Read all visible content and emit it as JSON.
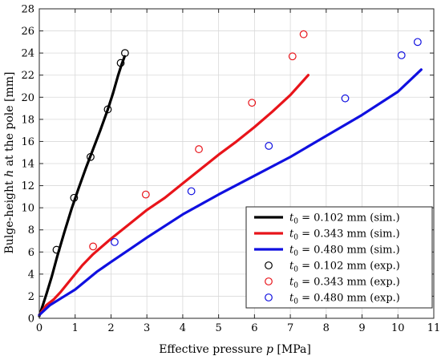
{
  "chart_data": {
    "type": "line",
    "xlabel": "Effective pressure p [MPa]",
    "ylabel": "Bulge-height h at the pole [mm]",
    "xlim": [
      0,
      11
    ],
    "ylim": [
      0,
      28
    ],
    "x_ticks": [
      0,
      1,
      2,
      3,
      4,
      5,
      6,
      7,
      8,
      9,
      10,
      11
    ],
    "y_ticks": [
      0,
      2,
      4,
      6,
      8,
      10,
      12,
      14,
      16,
      18,
      20,
      22,
      24,
      26,
      28
    ],
    "grid": true,
    "legend_position": "bottom-right",
    "series": [
      {
        "name": "t0 = 0.102 mm (sim.)",
        "kind": "line",
        "color": "#000000",
        "points": [
          [
            0,
            0.2
          ],
          [
            0.1,
            1.2
          ],
          [
            0.2,
            2.2
          ],
          [
            0.35,
            3.8
          ],
          [
            0.5,
            5.6
          ],
          [
            0.7,
            7.8
          ],
          [
            0.9,
            9.9
          ],
          [
            1.1,
            11.8
          ],
          [
            1.3,
            13.6
          ],
          [
            1.5,
            15.3
          ],
          [
            1.7,
            17.0
          ],
          [
            1.9,
            18.8
          ],
          [
            2.05,
            20.3
          ],
          [
            2.2,
            22.0
          ],
          [
            2.3,
            23.0
          ],
          [
            2.38,
            23.7
          ]
        ]
      },
      {
        "name": "t0 = 0.343 mm (sim.)",
        "kind": "line",
        "color": "#e8141a",
        "points": [
          [
            0,
            0.3
          ],
          [
            0.2,
            1.2
          ],
          [
            0.4,
            1.7
          ],
          [
            0.6,
            2.4
          ],
          [
            0.9,
            3.6
          ],
          [
            1.2,
            4.8
          ],
          [
            1.5,
            5.8
          ],
          [
            2.0,
            7.2
          ],
          [
            2.5,
            8.5
          ],
          [
            3.0,
            9.8
          ],
          [
            3.5,
            10.9
          ],
          [
            4.0,
            12.2
          ],
          [
            4.5,
            13.5
          ],
          [
            5.0,
            14.8
          ],
          [
            5.5,
            16.0
          ],
          [
            6.0,
            17.3
          ],
          [
            6.5,
            18.7
          ],
          [
            7.0,
            20.2
          ],
          [
            7.5,
            22.0
          ]
        ]
      },
      {
        "name": "t0 = 0.480 mm (sim.)",
        "kind": "line",
        "color": "#1010e0",
        "points": [
          [
            0,
            0.3
          ],
          [
            0.3,
            1.2
          ],
          [
            0.6,
            1.8
          ],
          [
            1.0,
            2.6
          ],
          [
            1.3,
            3.4
          ],
          [
            1.6,
            4.2
          ],
          [
            2.0,
            5.1
          ],
          [
            2.5,
            6.2
          ],
          [
            3.0,
            7.3
          ],
          [
            4.0,
            9.4
          ],
          [
            5.0,
            11.2
          ],
          [
            6.0,
            12.9
          ],
          [
            7.0,
            14.6
          ],
          [
            8.0,
            16.5
          ],
          [
            9.0,
            18.4
          ],
          [
            10.0,
            20.5
          ],
          [
            10.65,
            22.5
          ]
        ]
      },
      {
        "name": "t0 = 0.102 mm (exp.)",
        "kind": "marker",
        "color": "#000000",
        "points": [
          [
            0.48,
            6.2
          ],
          [
            0.97,
            10.9
          ],
          [
            1.43,
            14.6
          ],
          [
            1.91,
            18.9
          ],
          [
            2.27,
            23.1
          ],
          [
            2.39,
            24.0
          ]
        ]
      },
      {
        "name": "t0 = 0.343 mm (exp.)",
        "kind": "marker",
        "color": "#e8141a",
        "points": [
          [
            1.5,
            6.5
          ],
          [
            2.97,
            11.2
          ],
          [
            4.45,
            15.3
          ],
          [
            5.93,
            19.5
          ],
          [
            7.06,
            23.7
          ],
          [
            7.37,
            25.7
          ]
        ]
      },
      {
        "name": "t0 = 0.480 mm (exp.)",
        "kind": "marker",
        "color": "#1010e0",
        "points": [
          [
            2.1,
            6.9
          ],
          [
            4.24,
            11.5
          ],
          [
            6.4,
            15.6
          ],
          [
            8.53,
            19.9
          ],
          [
            10.1,
            23.8
          ],
          [
            10.55,
            25.0
          ]
        ]
      }
    ]
  },
  "legend": [
    {
      "symbol": "t",
      "sub": "0",
      "eq": " = 0.102 mm (sim.)"
    },
    {
      "symbol": "t",
      "sub": "0",
      "eq": " = 0.343 mm (sim.)"
    },
    {
      "symbol": "t",
      "sub": "0",
      "eq": " = 0.480 mm (sim.)"
    },
    {
      "symbol": "t",
      "sub": "0",
      "eq": " = 0.102 mm (exp.)"
    },
    {
      "symbol": "t",
      "sub": "0",
      "eq": " = 0.343 mm (exp.)"
    },
    {
      "symbol": "t",
      "sub": "0",
      "eq": " = 0.480 mm (exp.)"
    }
  ],
  "axis_text": {
    "x_prefix": "Effective pressure ",
    "x_var": "p",
    "x_suffix": " [MPa]",
    "y_prefix": "Bulge-height ",
    "y_var": "h",
    "y_suffix": " at the pole [mm]"
  }
}
